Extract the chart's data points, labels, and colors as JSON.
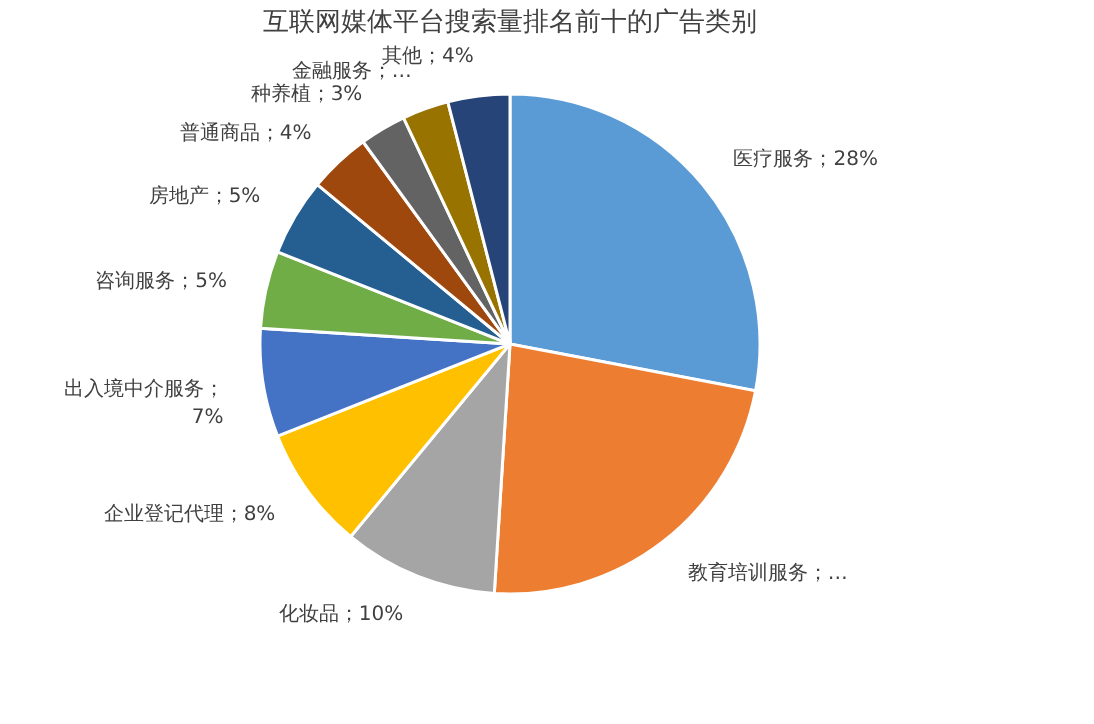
{
  "chart_data": {
    "type": "pie",
    "title": "互联网媒体平台搜索量排名前十的广告类别",
    "categories": [
      "医疗服务",
      "教育培训服务",
      "化妆品",
      "企业登记代理",
      "出入境中介服务",
      "咨询服务",
      "房地产",
      "普通商品",
      "种养植",
      "金融服务",
      "其他"
    ],
    "values": [
      28,
      23,
      10,
      8,
      7,
      5,
      5,
      4,
      3,
      3,
      4
    ],
    "value_labels": [
      "；28%",
      "；…",
      "；10%",
      "；8%",
      "；7%",
      "；5%",
      "；5%",
      "；4%",
      "；3%",
      "；…",
      "；4%"
    ],
    "colors": [
      "#5b9bd5",
      "#ed7d31",
      "#a5a5a5",
      "#ffc000",
      "#4472c4",
      "#70ad47",
      "#255e91",
      "#9e480e",
      "#636363",
      "#997300",
      "#264478"
    ],
    "legend": false
  }
}
